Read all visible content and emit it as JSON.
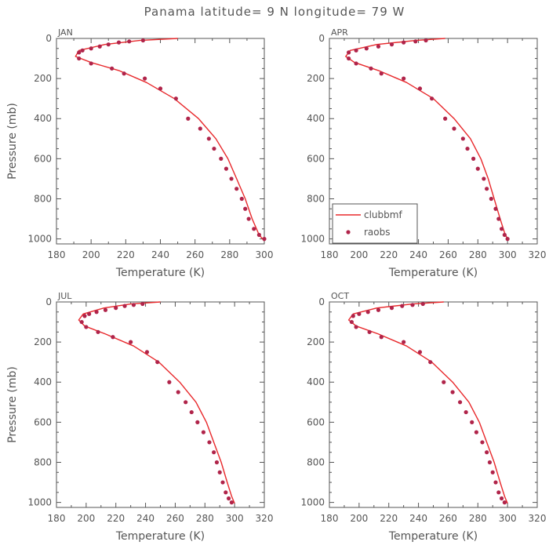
{
  "figure": {
    "title": "Panama  latitude= 9 N longitude= 79 W"
  },
  "legend": {
    "model_label": "clubbmf",
    "obs_label": "raobs"
  },
  "colors": {
    "model": "#e8282b",
    "obs": "#b0244a",
    "axis": "#555555"
  },
  "chart_data": [
    {
      "type": "line",
      "panel": "JAN",
      "xlabel": "Temperature (K)",
      "ylabel": "Pressure (mb)",
      "xlim": [
        180,
        300
      ],
      "ylim": [
        1025,
        0
      ],
      "xticks": [
        180,
        200,
        220,
        240,
        260,
        280,
        300
      ],
      "yticks": [
        0,
        200,
        400,
        600,
        800,
        1000
      ],
      "series": [
        {
          "name": "clubbmf",
          "kind": "line",
          "x": [
            250,
            228,
            208,
            193,
            191,
            200,
            216,
            232,
            248,
            262,
            272,
            279,
            284,
            289,
            293,
            297,
            300
          ],
          "y": [
            0,
            10,
            30,
            60,
            90,
            120,
            160,
            220,
            300,
            400,
            500,
            600,
            700,
            800,
            900,
            980,
            1010
          ]
        },
        {
          "name": "raobs",
          "kind": "scatter",
          "x": [
            230,
            222,
            216,
            210,
            205,
            200,
            195,
            193,
            193,
            200,
            212,
            219,
            231,
            240,
            249,
            256,
            263,
            268,
            271,
            275,
            278,
            281,
            284,
            287,
            289,
            291,
            294,
            297,
            300
          ],
          "y": [
            10,
            15,
            20,
            30,
            40,
            50,
            60,
            70,
            100,
            125,
            150,
            175,
            200,
            250,
            300,
            400,
            450,
            500,
            550,
            600,
            650,
            700,
            750,
            800,
            850,
            900,
            950,
            980,
            1000
          ]
        }
      ]
    },
    {
      "type": "line",
      "panel": "APR",
      "xlabel": "Temperature (K)",
      "ylabel": "",
      "xlim": [
        180,
        320
      ],
      "ylim": [
        1025,
        0
      ],
      "xticks": [
        180,
        200,
        220,
        240,
        260,
        280,
        300,
        320
      ],
      "yticks": [
        0,
        200,
        400,
        600,
        800,
        1000
      ],
      "series": [
        {
          "name": "clubbmf",
          "kind": "line",
          "x": [
            258,
            238,
            212,
            194,
            191,
            197,
            213,
            232,
            250,
            264,
            275,
            282,
            287,
            291,
            295,
            298,
            300
          ],
          "y": [
            0,
            10,
            30,
            60,
            90,
            120,
            160,
            220,
            300,
            400,
            500,
            600,
            700,
            800,
            900,
            970,
            1000
          ]
        },
        {
          "name": "raobs",
          "kind": "scatter",
          "x": [
            245,
            238,
            230,
            222,
            213,
            205,
            198,
            193,
            193,
            198,
            208,
            215,
            230,
            241,
            249,
            258,
            264,
            270,
            273,
            277,
            280,
            284,
            286,
            289,
            292,
            294,
            296,
            298,
            300
          ],
          "y": [
            10,
            15,
            20,
            30,
            40,
            50,
            60,
            70,
            100,
            125,
            150,
            175,
            200,
            250,
            300,
            400,
            450,
            500,
            550,
            600,
            650,
            700,
            750,
            800,
            850,
            900,
            950,
            980,
            1000
          ]
        }
      ]
    },
    {
      "type": "line",
      "panel": "JUL",
      "xlabel": "Temperature (K)",
      "ylabel": "Pressure (mb)",
      "xlim": [
        180,
        320
      ],
      "ylim": [
        1025,
        0
      ],
      "xticks": [
        180,
        200,
        220,
        240,
        260,
        280,
        300,
        320
      ],
      "yticks": [
        0,
        200,
        400,
        600,
        800,
        1000
      ],
      "series": [
        {
          "name": "clubbmf",
          "kind": "line",
          "x": [
            250,
            230,
            212,
            198,
            195,
            199,
            213,
            232,
            249,
            263,
            274,
            281,
            286,
            291,
            295,
            298,
            300
          ],
          "y": [
            0,
            10,
            30,
            60,
            90,
            120,
            160,
            220,
            300,
            400,
            500,
            600,
            700,
            800,
            900,
            970,
            1005
          ]
        },
        {
          "name": "raobs",
          "kind": "scatter",
          "x": [
            238,
            232,
            226,
            220,
            213,
            207,
            202,
            199,
            197,
            200,
            208,
            218,
            230,
            241,
            248,
            256,
            262,
            267,
            271,
            275,
            279,
            283,
            286,
            288,
            290,
            292,
            294,
            296,
            298
          ],
          "y": [
            10,
            15,
            20,
            30,
            40,
            50,
            60,
            70,
            100,
            125,
            150,
            175,
            200,
            250,
            300,
            400,
            450,
            500,
            550,
            600,
            650,
            700,
            750,
            800,
            850,
            900,
            950,
            980,
            1000
          ]
        }
      ]
    },
    {
      "type": "line",
      "panel": "OCT",
      "xlabel": "Temperature (K)",
      "ylabel": "",
      "xlim": [
        180,
        320
      ],
      "ylim": [
        1025,
        0
      ],
      "xticks": [
        180,
        200,
        220,
        240,
        260,
        280,
        300,
        320
      ],
      "yticks": [
        0,
        200,
        400,
        600,
        800,
        1000
      ],
      "series": [
        {
          "name": "clubbmf",
          "kind": "line",
          "x": [
            257,
            236,
            212,
            196,
            193,
            198,
            213,
            232,
            249,
            263,
            274,
            281,
            286,
            291,
            295,
            298,
            300
          ],
          "y": [
            0,
            10,
            30,
            60,
            90,
            120,
            160,
            220,
            300,
            400,
            500,
            600,
            700,
            800,
            900,
            970,
            1005
          ]
        },
        {
          "name": "raobs",
          "kind": "scatter",
          "x": [
            243,
            236,
            229,
            222,
            213,
            206,
            200,
            196,
            195,
            198,
            207,
            215,
            230,
            241,
            248,
            257,
            263,
            268,
            272,
            276,
            279,
            283,
            286,
            288,
            290,
            292,
            294,
            296,
            298
          ],
          "y": [
            10,
            15,
            20,
            30,
            40,
            50,
            60,
            70,
            100,
            125,
            150,
            175,
            200,
            250,
            300,
            400,
            450,
            500,
            550,
            600,
            650,
            700,
            750,
            800,
            850,
            900,
            950,
            980,
            1000
          ]
        }
      ]
    }
  ]
}
